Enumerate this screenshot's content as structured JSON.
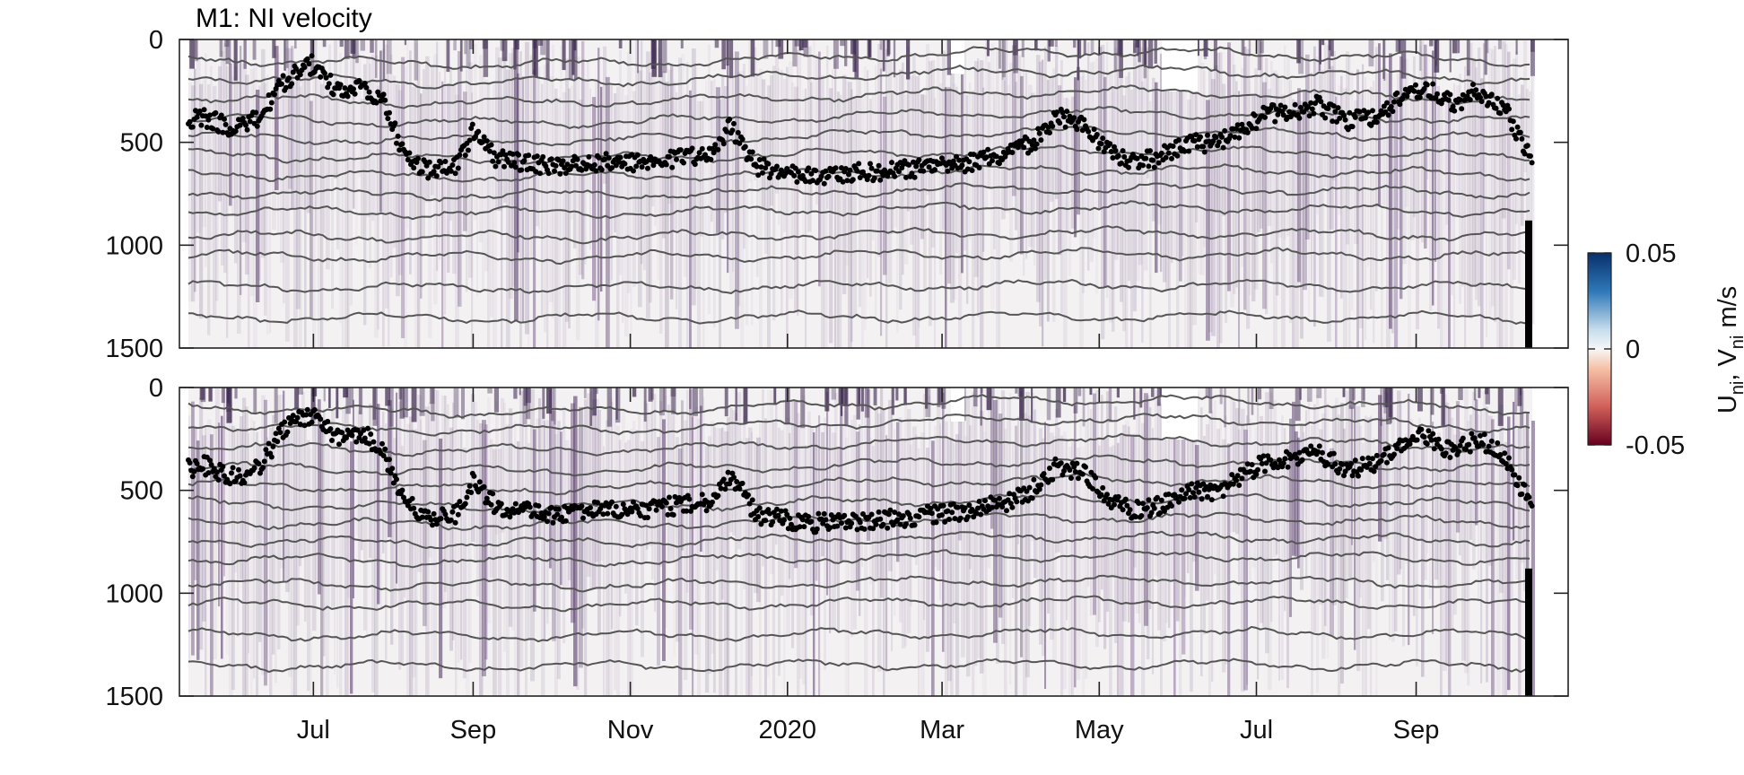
{
  "chart_data": {
    "type": "heatmap",
    "title": "M1: NI velocity",
    "ylabel": "",
    "xlabel": "",
    "panels": [
      {
        "name": "",
        "component": "U_ni"
      },
      {
        "name": "",
        "component": "V_ni"
      }
    ],
    "y_axis": {
      "ticks": [
        0,
        500,
        1000,
        1500
      ],
      "ylim": [
        0,
        1500
      ],
      "reversed": true
    },
    "x_axis": {
      "tick_labels": [
        "Jul",
        "Sep",
        "Nov",
        "2020",
        "Mar",
        "May",
        "Jul",
        "Sep"
      ],
      "tick_dates": [
        "2019-07-01",
        "2019-09-01",
        "2019-11-01",
        "2020-01-01",
        "2020-03-01",
        "2020-05-01",
        "2020-07-01",
        "2020-09-01"
      ],
      "xlim": [
        "2019-05-10",
        "2020-10-30"
      ]
    },
    "colorbar": {
      "label": "U_ni, V_ni m/s",
      "clim": [
        -0.05,
        0.05
      ],
      "ticks": [
        0.05,
        0,
        -0.05
      ],
      "tick_labels": [
        "0.05",
        "0",
        "-0.05"
      ],
      "colors": {
        "max": "#08306b",
        "mid": "#f7f7f7",
        "min": "#67001f"
      }
    },
    "mixed_layer_depth": {
      "color": "#000000",
      "dates": [
        "2019-05-12",
        "2019-05-20",
        "2019-06-01",
        "2019-06-10",
        "2019-06-20",
        "2019-07-01",
        "2019-07-10",
        "2019-07-20",
        "2019-07-28",
        "2019-08-05",
        "2019-08-15",
        "2019-08-25",
        "2019-09-01",
        "2019-09-10",
        "2019-09-20",
        "2019-10-01",
        "2019-10-15",
        "2019-11-01",
        "2019-11-15",
        "2019-12-01",
        "2019-12-10",
        "2019-12-20",
        "2019-12-30",
        "2020-01-10",
        "2020-01-25",
        "2020-02-10",
        "2020-02-25",
        "2020-03-10",
        "2020-03-25",
        "2020-04-05",
        "2020-04-15",
        "2020-04-25",
        "2020-05-05",
        "2020-05-15",
        "2020-05-25",
        "2020-06-05",
        "2020-06-15",
        "2020-06-25",
        "2020-07-05",
        "2020-07-15",
        "2020-07-25",
        "2020-08-05",
        "2020-08-15",
        "2020-08-25",
        "2020-09-05",
        "2020-09-15",
        "2020-09-25",
        "2020-10-05",
        "2020-10-15"
      ],
      "depths": [
        400,
        380,
        440,
        380,
        200,
        120,
        250,
        220,
        300,
        550,
        640,
        620,
        450,
        580,
        600,
        620,
        600,
        600,
        580,
        560,
        420,
        620,
        640,
        660,
        650,
        640,
        620,
        600,
        560,
        500,
        380,
        420,
        550,
        600,
        570,
        500,
        510,
        430,
        360,
        350,
        320,
        400,
        380,
        300,
        230,
        320,
        250,
        330,
        560
      ]
    }
  }
}
